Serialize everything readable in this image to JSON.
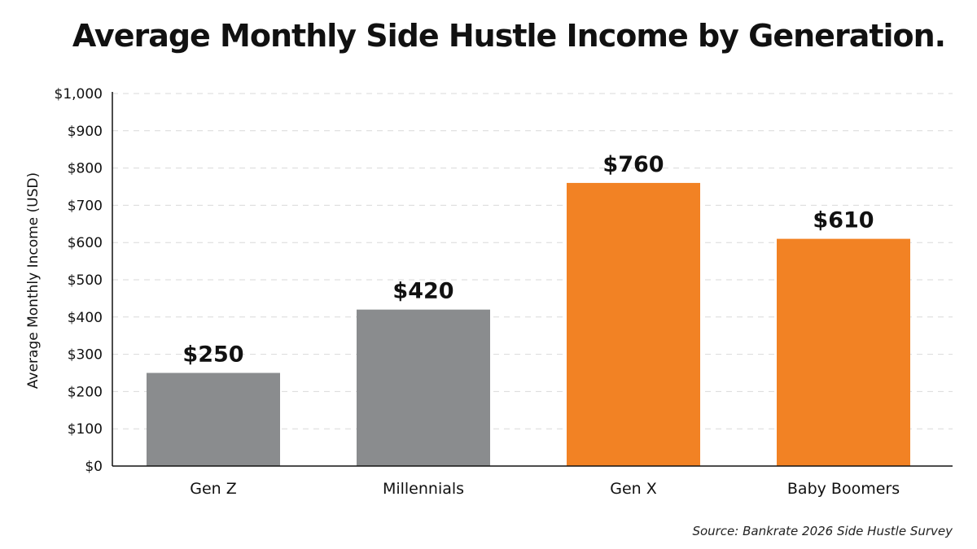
{
  "chart_data": {
    "type": "bar",
    "title": "Average Monthly Side Hustle Income by Generation.",
    "categories": [
      "Gen Z",
      "Millennials",
      "Gen X",
      "Baby Boomers"
    ],
    "values": [
      250,
      420,
      760,
      610
    ],
    "value_labels": [
      "$250",
      "$420",
      "$760",
      "$610"
    ],
    "bar_colors": [
      "#8a8c8e",
      "#8a8c8e",
      "#f28224",
      "#f28224"
    ],
    "xlabel": "",
    "ylabel": "Average Monthly Income (USD)",
    "ylim": [
      0,
      1000
    ],
    "yticks": [
      0,
      100,
      200,
      300,
      400,
      500,
      600,
      700,
      800,
      900,
      1000
    ],
    "ytick_labels": [
      "$0",
      "$100",
      "$200",
      "$300",
      "$400",
      "$500",
      "$600",
      "$700",
      "$800",
      "$900",
      "$1,000"
    ],
    "grid": true,
    "grid_style": "dashed-horizontal",
    "legend": "none",
    "source": "Source: Bankrate 2026 Side Hustle Survey"
  }
}
